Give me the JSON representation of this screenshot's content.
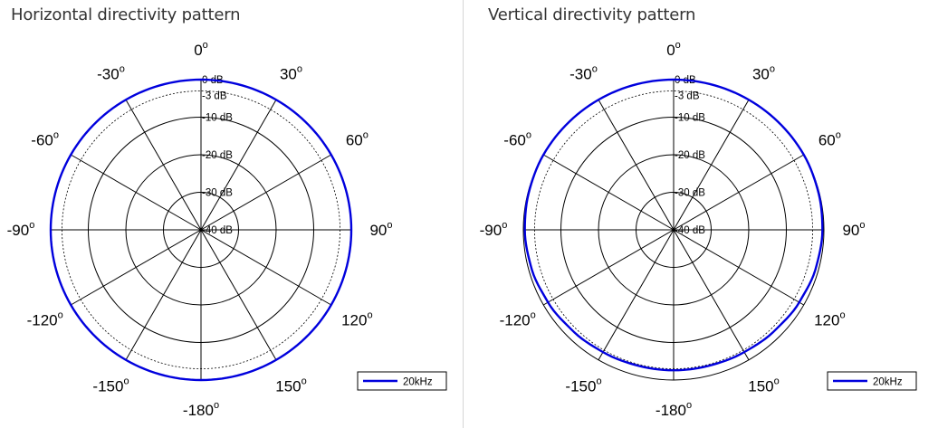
{
  "chart_data": [
    {
      "type": "polar",
      "title": "Horizontal directivity pattern",
      "angle_labels": [
        "0",
        "30",
        "60",
        "90",
        "120",
        "150",
        "-180",
        "-150",
        "-120",
        "-90",
        "-60",
        "-30"
      ],
      "angle_values": [
        0,
        30,
        60,
        90,
        120,
        150,
        180,
        -150,
        -120,
        -90,
        -60,
        -30
      ],
      "degree_symbol": "o",
      "db_labels": [
        "0 dB",
        "-3 dB",
        "-10 dB",
        "-20 dB",
        "-30 dB",
        "-40 dB"
      ],
      "db_values": [
        0,
        -3,
        -10,
        -20,
        -30,
        -40
      ],
      "rlim": [
        -40,
        0
      ],
      "legend": "bottom-right",
      "series": [
        {
          "name": "20kHz",
          "color": "#0000dd",
          "angles": [
            0,
            30,
            60,
            90,
            120,
            150,
            180,
            210,
            240,
            270,
            300,
            330
          ],
          "values": [
            0.0,
            0.0,
            0.0,
            0.0,
            0.0,
            0.0,
            0.0,
            0.0,
            0.0,
            0.0,
            0.0,
            0.0
          ]
        }
      ]
    },
    {
      "type": "polar",
      "title": "Vertical directivity pattern",
      "angle_labels": [
        "0",
        "30",
        "60",
        "90",
        "120",
        "150",
        "-180",
        "-150",
        "-120",
        "-90",
        "-60",
        "-30"
      ],
      "angle_values": [
        0,
        30,
        60,
        90,
        120,
        150,
        180,
        -150,
        -120,
        -90,
        -60,
        -30
      ],
      "degree_symbol": "o",
      "db_labels": [
        "0 dB",
        "-3 dB",
        "-10 dB",
        "-20 dB",
        "-30 dB",
        "-40 dB"
      ],
      "db_values": [
        0,
        -3,
        -10,
        -20,
        -30,
        -40
      ],
      "rlim": [
        -40,
        0
      ],
      "legend": "bottom-right",
      "series": [
        {
          "name": "20kHz",
          "color": "#0000dd",
          "angles": [
            0,
            15,
            30,
            45,
            60,
            75,
            90,
            105,
            120,
            135,
            150,
            165,
            180,
            195,
            210,
            225,
            240,
            255,
            270,
            285,
            300,
            315,
            330,
            345
          ],
          "values": [
            0.0,
            0.0,
            0.0,
            0.0,
            0.0,
            -0.2,
            -0.4,
            -0.8,
            -1.4,
            -2.0,
            -2.4,
            -2.6,
            -2.6,
            -2.6,
            -2.4,
            -2.0,
            -1.4,
            -0.8,
            -0.4,
            -0.2,
            0.0,
            0.0,
            0.0,
            0.0
          ]
        }
      ]
    }
  ]
}
